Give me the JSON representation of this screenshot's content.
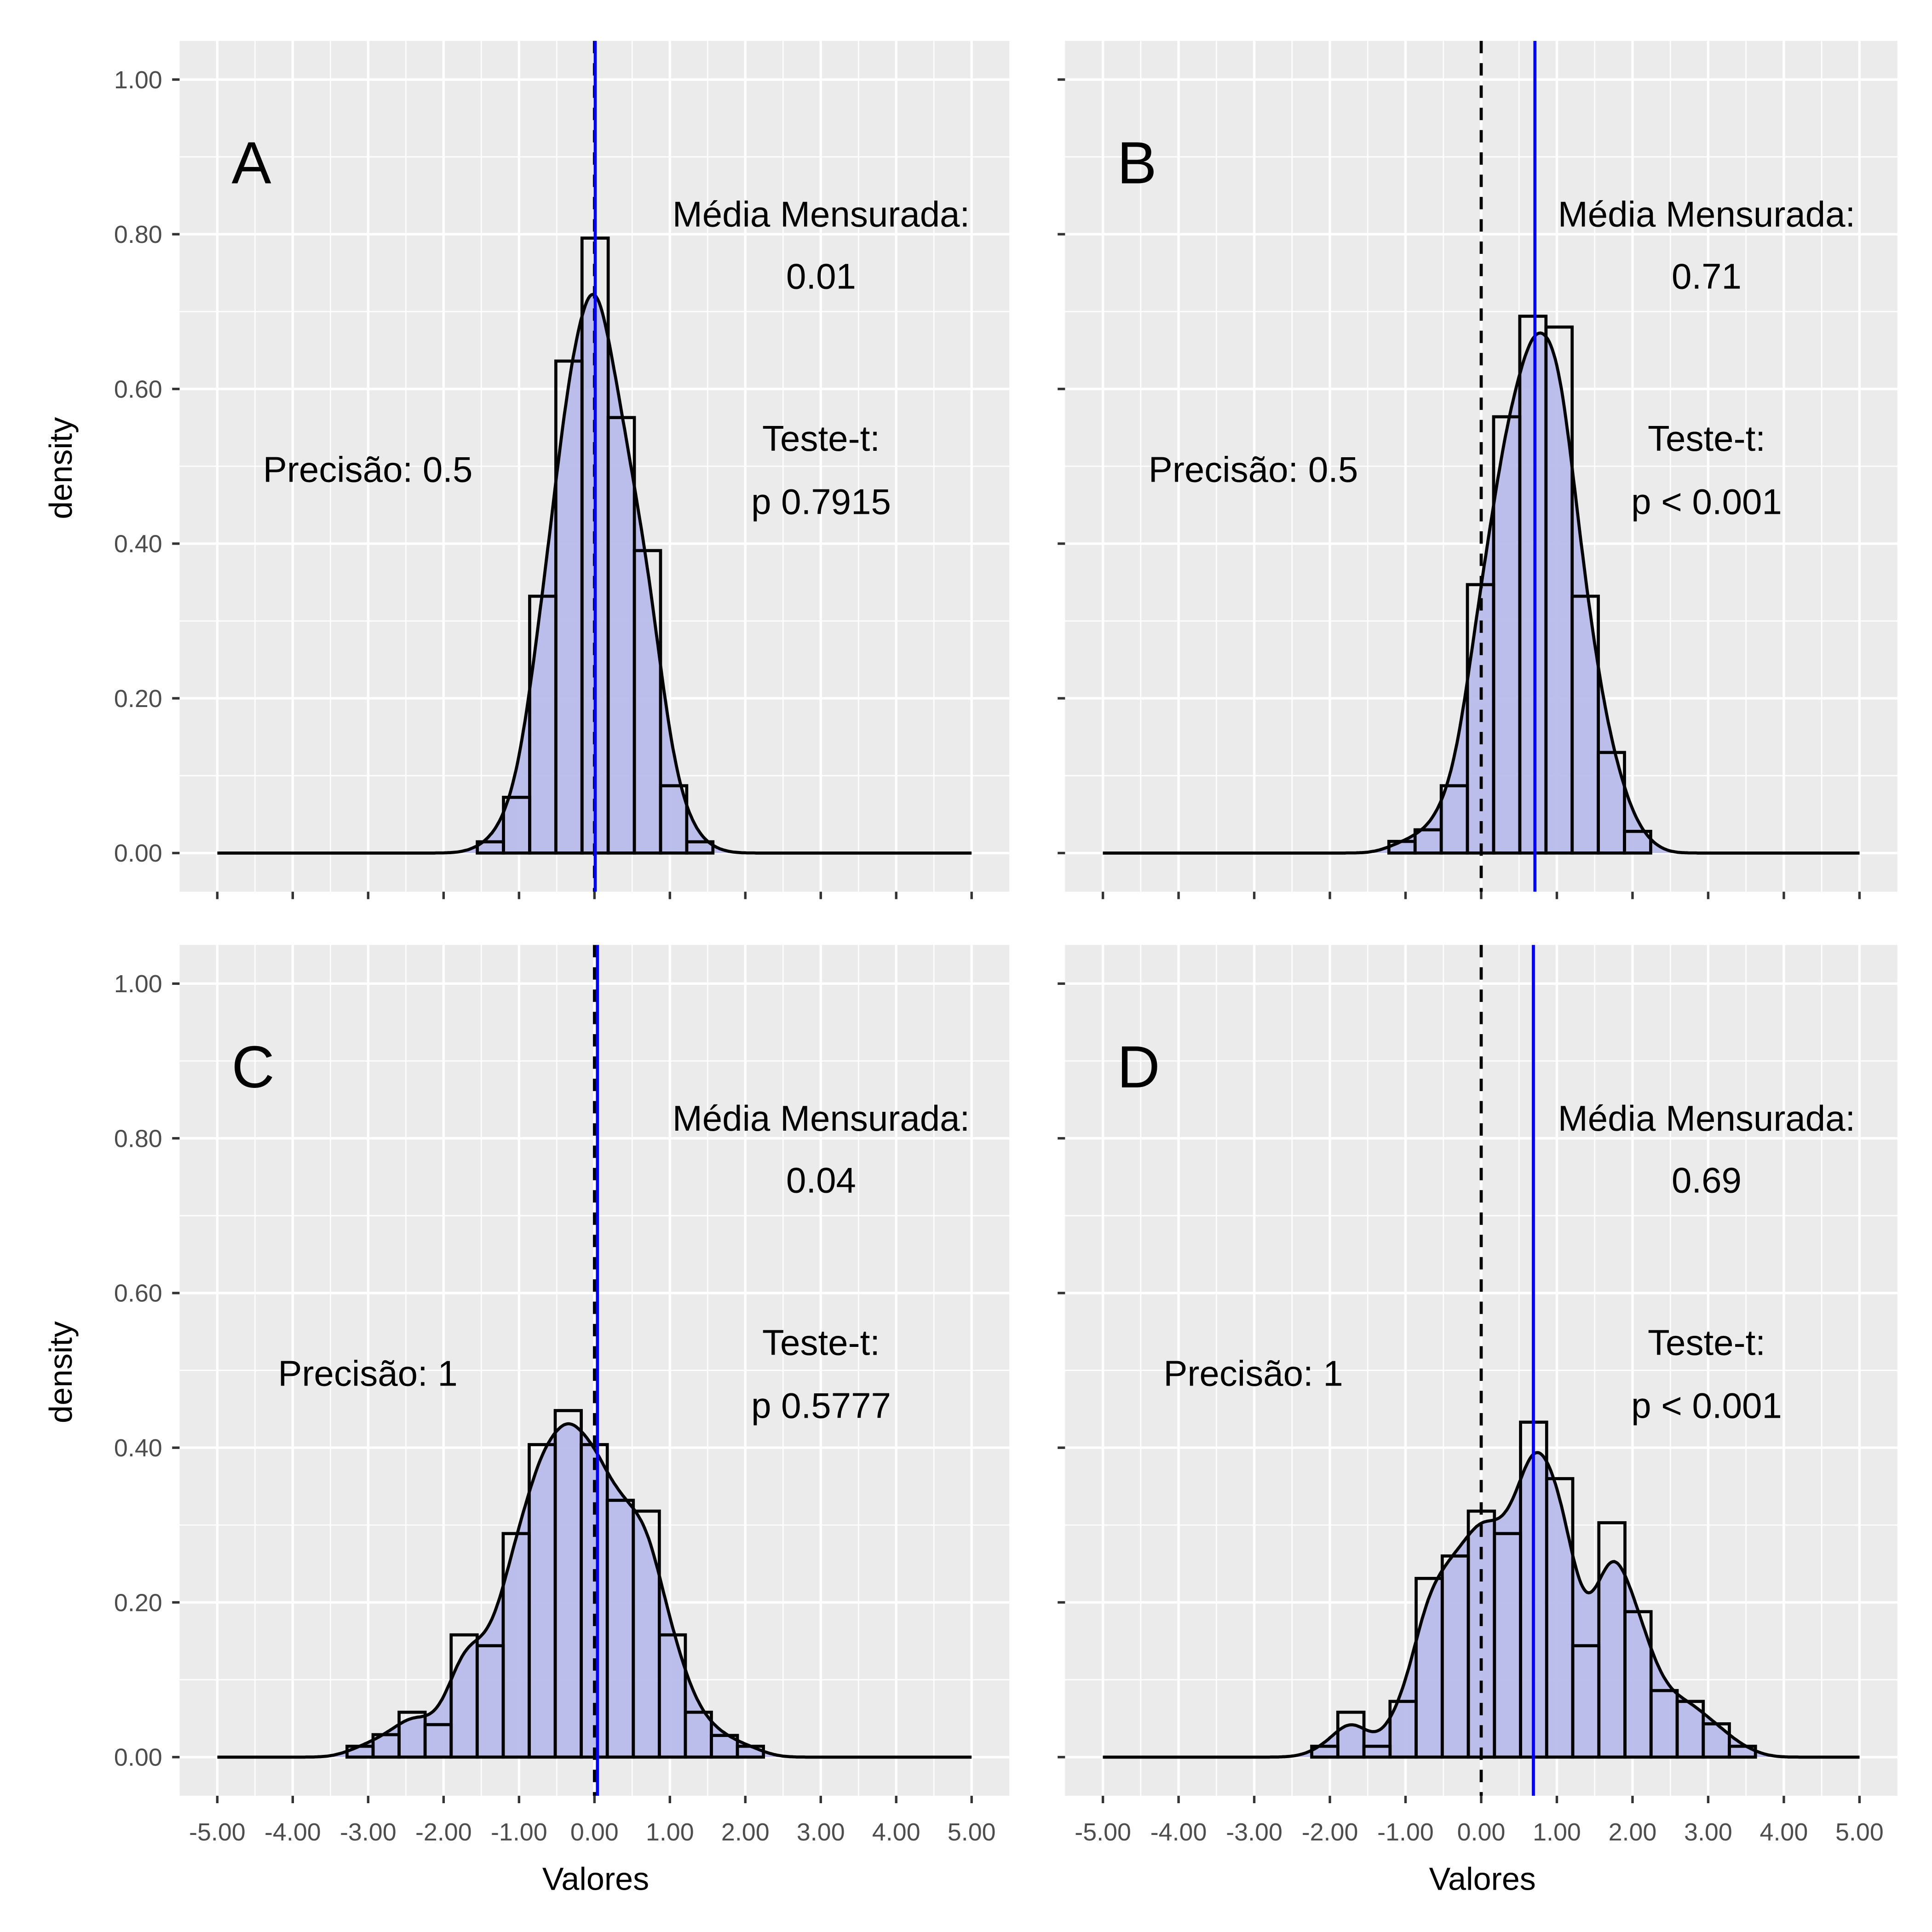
{
  "chart_data": {
    "type": "histogram-density-facets",
    "xlabel": "Valores",
    "ylabel": "density",
    "xlim": [
      -5.5,
      5.5
    ],
    "ylim": [
      -0.05,
      1.05
    ],
    "x_ticks": [
      "-5.00",
      "-4.00",
      "-3.00",
      "-2.00",
      "-1.00",
      "0.00",
      "1.00",
      "2.00",
      "3.00",
      "4.00",
      "5.00"
    ],
    "y_ticks": [
      "0.00",
      "0.20",
      "0.40",
      "0.60",
      "0.80",
      "1.00"
    ],
    "grid": true,
    "colors": {
      "panel_bg": "#EBEBEB",
      "grid": "#FFFFFF",
      "density_fill": "#B8BAEA",
      "mean_line": "#0000FF",
      "reference_line": "#000000",
      "bar_outline": "#000000"
    },
    "panels": [
      {
        "label": "A",
        "precision_text": "Precisão: 0.5",
        "mean_title": "Média Mensurada:",
        "mean_value": "0.01",
        "test_title": "Teste-t:",
        "p_text": "p 0.7915",
        "measured_mean": 0.01,
        "reference": 0,
        "bin_start": -1.553,
        "bin_width": 0.347,
        "densities": [
          0.0145,
          0.072,
          0.332,
          0.636,
          0.795,
          0.563,
          0.391,
          0.087,
          0.0145
        ]
      },
      {
        "label": "B",
        "precision_text": "Precisão: 0.5",
        "mean_title": "Média Mensurada:",
        "mean_value": "0.71",
        "test_title": "Teste-t:",
        "p_text": "p < 0.001",
        "measured_mean": 0.71,
        "reference": 0,
        "bin_start": -1.22,
        "bin_width": 0.346,
        "densities": [
          0.015,
          0.03,
          0.087,
          0.347,
          0.564,
          0.694,
          0.68,
          0.332,
          0.13,
          0.028
        ]
      },
      {
        "label": "C",
        "precision_text": "Precisão: 1",
        "mean_title": "Média Mensurada:",
        "mean_value": "0.04",
        "test_title": "Teste-t:",
        "p_text": "p 0.5777",
        "measured_mean": 0.04,
        "reference": 0,
        "bin_start": -3.28,
        "bin_width": 0.345,
        "densities": [
          0.014,
          0.029,
          0.058,
          0.042,
          0.158,
          0.144,
          0.289,
          0.404,
          0.448,
          0.404,
          0.332,
          0.318,
          0.158,
          0.058,
          0.028,
          0.014
        ]
      },
      {
        "label": "D",
        "precision_text": "Precisão: 1",
        "mean_title": "Média Mensurada:",
        "mean_value": "0.69",
        "test_title": "Teste-t:",
        "p_text": "p < 0.001",
        "measured_mean": 0.69,
        "reference": 0,
        "bin_start": -2.24,
        "bin_width": 0.345,
        "densities": [
          0.014,
          0.058,
          0.014,
          0.072,
          0.231,
          0.26,
          0.318,
          0.289,
          0.433,
          0.36,
          0.144,
          0.303,
          0.188,
          0.086,
          0.072,
          0.043,
          0.014
        ]
      }
    ]
  }
}
